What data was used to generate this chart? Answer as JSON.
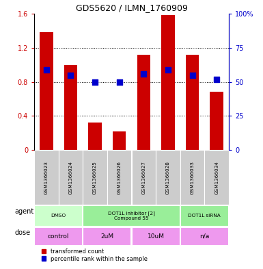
{
  "title": "GDS5620 / ILMN_1760909",
  "samples": [
    "GSM1366023",
    "GSM1366024",
    "GSM1366025",
    "GSM1366026",
    "GSM1366027",
    "GSM1366028",
    "GSM1366033",
    "GSM1366034"
  ],
  "red_values": [
    1.38,
    1.0,
    0.32,
    0.22,
    1.12,
    1.58,
    1.12,
    0.68
  ],
  "blue_percentile": [
    59,
    55,
    50,
    50,
    56,
    59,
    55,
    52
  ],
  "ylim_left": [
    0,
    1.6
  ],
  "ylim_right": [
    0,
    100
  ],
  "yticks_left": [
    0,
    0.4,
    0.8,
    1.2,
    1.6
  ],
  "yticks_right": [
    0,
    25,
    50,
    75,
    100
  ],
  "ytick_labels_left": [
    "0",
    "0.4",
    "0.8",
    "1.2",
    "1.6"
  ],
  "ytick_labels_right": [
    "0",
    "25",
    "50",
    "75",
    "100%"
  ],
  "red_color": "#cc0000",
  "blue_color": "#0000cc",
  "agent_groups": [
    {
      "label": "DMSO",
      "start": 0,
      "end": 2,
      "color": "#ccffcc"
    },
    {
      "label": "DOT1L inhibitor [2]\nCompound 55",
      "start": 2,
      "end": 6,
      "color": "#99ee99"
    },
    {
      "label": "DOT1L siRNA",
      "start": 6,
      "end": 8,
      "color": "#99ee99"
    }
  ],
  "dose_groups": [
    {
      "label": "control",
      "start": 0,
      "end": 2,
      "color": "#ee99ee"
    },
    {
      "label": "2uM",
      "start": 2,
      "end": 4,
      "color": "#ee99ee"
    },
    {
      "label": "10uM",
      "start": 4,
      "end": 6,
      "color": "#ee99ee"
    },
    {
      "label": "n/a",
      "start": 6,
      "end": 8,
      "color": "#ee99ee"
    }
  ],
  "sample_bg_color": "#cccccc",
  "bar_width": 0.55,
  "blue_square_size": 30,
  "grid_lines": [
    0.4,
    0.8,
    1.2
  ]
}
